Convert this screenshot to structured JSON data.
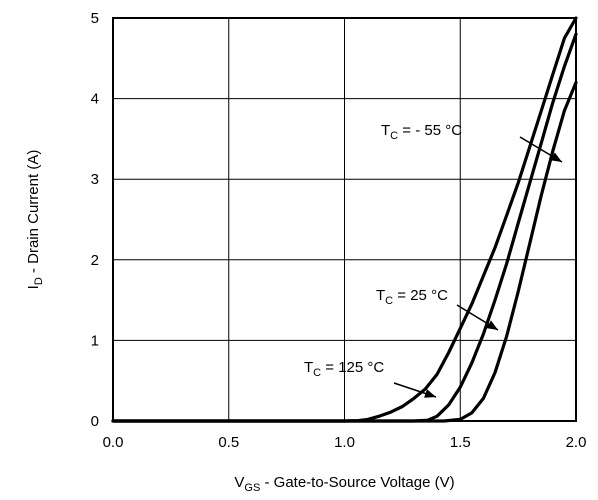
{
  "chart_data": {
    "type": "line",
    "title": "",
    "xlabel": {
      "main": "V",
      "sub": "GS",
      "rest": " - Gate-to-Source Voltage (V)"
    },
    "ylabel": {
      "main": "I",
      "sub": "D",
      "rest": " - Drain Current (A)"
    },
    "xlim": [
      0.0,
      2.0
    ],
    "ylim": [
      0,
      5
    ],
    "x_ticks": [
      "0.0",
      "0.5",
      "1.0",
      "1.5",
      "2.0"
    ],
    "y_ticks": [
      "0",
      "1",
      "2",
      "3",
      "4",
      "5"
    ],
    "grid": true,
    "series": [
      {
        "name": "T_C = 125 °C",
        "label": {
          "main": "T",
          "sub": "C",
          "rest": " = 125 °C"
        },
        "x": [
          0.0,
          1.0,
          1.06,
          1.1,
          1.15,
          1.2,
          1.25,
          1.3,
          1.35,
          1.4,
          1.45,
          1.5,
          1.55,
          1.6,
          1.65,
          1.7,
          1.75,
          1.8,
          1.85,
          1.9,
          1.95,
          2.0
        ],
        "y": [
          0,
          0,
          0.005,
          0.02,
          0.06,
          0.11,
          0.18,
          0.28,
          0.4,
          0.58,
          0.85,
          1.15,
          1.45,
          1.8,
          2.15,
          2.55,
          2.95,
          3.4,
          3.85,
          4.3,
          4.75,
          5.0
        ]
      },
      {
        "name": "T_C = 25 °C",
        "label": {
          "main": "T",
          "sub": "C",
          "rest": " = 25 °C"
        },
        "x": [
          0.0,
          1.3,
          1.36,
          1.4,
          1.45,
          1.5,
          1.55,
          1.6,
          1.65,
          1.7,
          1.75,
          1.8,
          1.85,
          1.9,
          1.95,
          2.0
        ],
        "y": [
          0,
          0,
          0.01,
          0.06,
          0.2,
          0.42,
          0.72,
          1.08,
          1.5,
          1.95,
          2.45,
          2.95,
          3.45,
          3.95,
          4.4,
          4.8
        ]
      },
      {
        "name": "T_C = - 55 °C",
        "label": {
          "main": "T",
          "sub": "C",
          "rest": " = - 55 °C"
        },
        "x": [
          0.0,
          1.43,
          1.5,
          1.55,
          1.6,
          1.65,
          1.7,
          1.75,
          1.8,
          1.85,
          1.9,
          1.95,
          2.0
        ],
        "y": [
          0,
          0,
          0.02,
          0.1,
          0.28,
          0.6,
          1.05,
          1.6,
          2.2,
          2.8,
          3.35,
          3.85,
          4.2
        ]
      }
    ]
  }
}
